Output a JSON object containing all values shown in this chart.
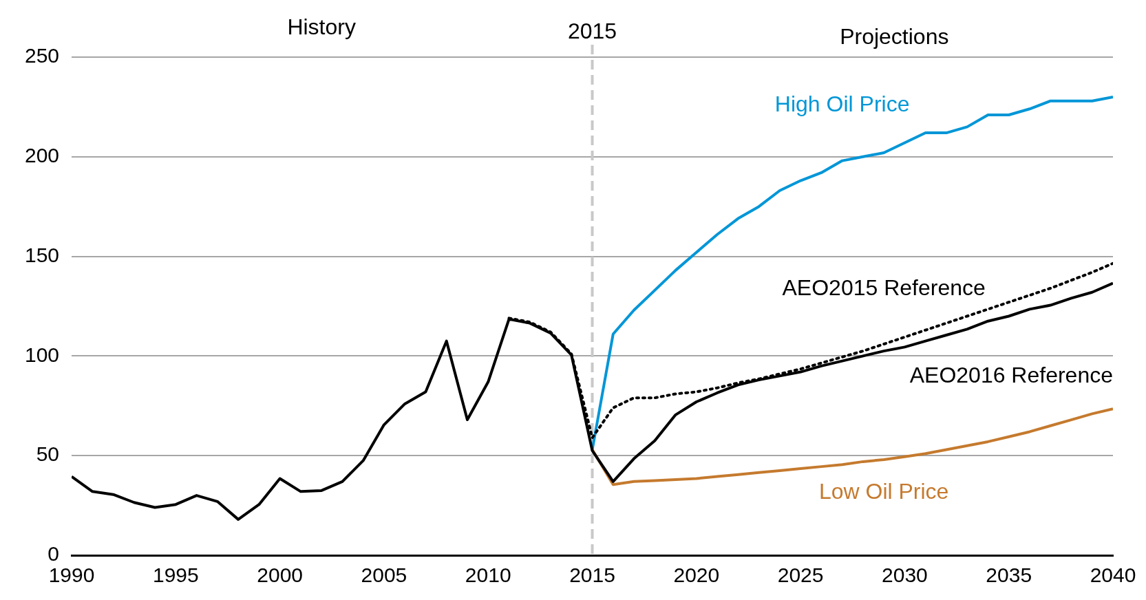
{
  "chart_data": {
    "type": "line",
    "xlim": [
      1990,
      2040
    ],
    "xticks": [
      1990,
      1995,
      2000,
      2005,
      2010,
      2015,
      2020,
      2025,
      2030,
      2035,
      2040
    ],
    "ylim": [
      0,
      250
    ],
    "yticks": [
      0,
      50,
      100,
      150,
      200,
      250
    ],
    "grid": "y",
    "legend": false,
    "marker": "none",
    "annotations": [
      "History",
      "Projections"
    ],
    "ref_lines": [
      {
        "axis": "x",
        "value": 2015,
        "label": "2015",
        "color": "#c8c8c8",
        "line_style": "dashed"
      }
    ],
    "series": [
      {
        "name": "High Oil Price",
        "color": "#0096d7",
        "line_style": "solid",
        "x": [
          2015,
          2016,
          2017,
          2018,
          2019,
          2020,
          2021,
          2022,
          2023,
          2024,
          2025,
          2026,
          2027,
          2028,
          2029,
          2030,
          2031,
          2032,
          2033,
          2034,
          2035,
          2036,
          2037,
          2038,
          2039,
          2040
        ],
        "values": [
          53,
          111,
          123,
          133,
          143,
          152,
          161,
          169,
          175,
          183,
          188,
          192,
          198,
          200,
          202,
          207,
          212,
          212,
          215,
          221,
          221,
          224,
          228,
          228,
          228,
          230
        ]
      },
      {
        "name": "Low Oil Price",
        "color": "#c57a2e",
        "line_style": "solid",
        "x": [
          2015,
          2016,
          2017,
          2018,
          2019,
          2020,
          2021,
          2022,
          2023,
          2024,
          2025,
          2026,
          2027,
          2028,
          2029,
          2030,
          2031,
          2032,
          2033,
          2034,
          2035,
          2036,
          2037,
          2038,
          2039,
          2040
        ],
        "values": [
          53,
          35.5,
          37,
          37.5,
          38,
          38.5,
          39.5,
          40.5,
          41.5,
          42.5,
          43.5,
          44.5,
          45.5,
          47,
          48,
          49.5,
          51,
          53,
          55,
          57,
          59.5,
          62,
          65,
          68,
          71,
          73.5
        ]
      },
      {
        "name": "AEO2015 Reference",
        "color": "#000000",
        "line_style": "dotted",
        "x": [
          2011,
          2012,
          2013,
          2014,
          2015,
          2016,
          2017,
          2018,
          2019,
          2020,
          2021,
          2022,
          2023,
          2024,
          2025,
          2026,
          2027,
          2028,
          2029,
          2030,
          2031,
          2032,
          2033,
          2034,
          2035,
          2036,
          2037,
          2038,
          2039,
          2040
        ],
        "values": [
          119,
          117,
          112,
          101,
          59,
          74,
          79,
          79,
          81,
          82,
          84,
          86.5,
          88.5,
          91,
          93.5,
          96.5,
          99.5,
          102.5,
          106,
          109.5,
          113,
          116.5,
          120,
          123.5,
          127,
          130.5,
          134,
          138,
          142,
          146.5
        ]
      },
      {
        "name": "AEO2016 Reference",
        "color": "#000000",
        "line_style": "solid",
        "x": [
          1990,
          1991,
          1992,
          1993,
          1994,
          1995,
          1996,
          1997,
          1998,
          1999,
          2000,
          2001,
          2002,
          2003,
          2004,
          2005,
          2006,
          2007,
          2008,
          2009,
          2010,
          2011,
          2012,
          2013,
          2014,
          2015,
          2016,
          2017,
          2018,
          2019,
          2020,
          2021,
          2022,
          2023,
          2024,
          2025,
          2026,
          2027,
          2028,
          2029,
          2030,
          2031,
          2032,
          2033,
          2034,
          2035,
          2036,
          2037,
          2038,
          2039,
          2040
        ],
        "values": [
          39.5,
          32,
          30.5,
          26.5,
          24,
          25.5,
          30,
          27,
          18,
          25.5,
          38.5,
          32,
          32.5,
          37,
          47.5,
          65.5,
          76,
          82,
          107.5,
          68,
          87,
          118.5,
          116.5,
          111.5,
          100.5,
          52.5,
          37,
          48.5,
          57.5,
          70.5,
          77,
          81.5,
          85.5,
          88,
          90,
          92,
          95,
          97.5,
          100,
          102.5,
          104.5,
          107.5,
          110.5,
          113.5,
          117.5,
          120,
          123.5,
          125.5,
          129,
          132,
          136.5
        ]
      }
    ]
  }
}
